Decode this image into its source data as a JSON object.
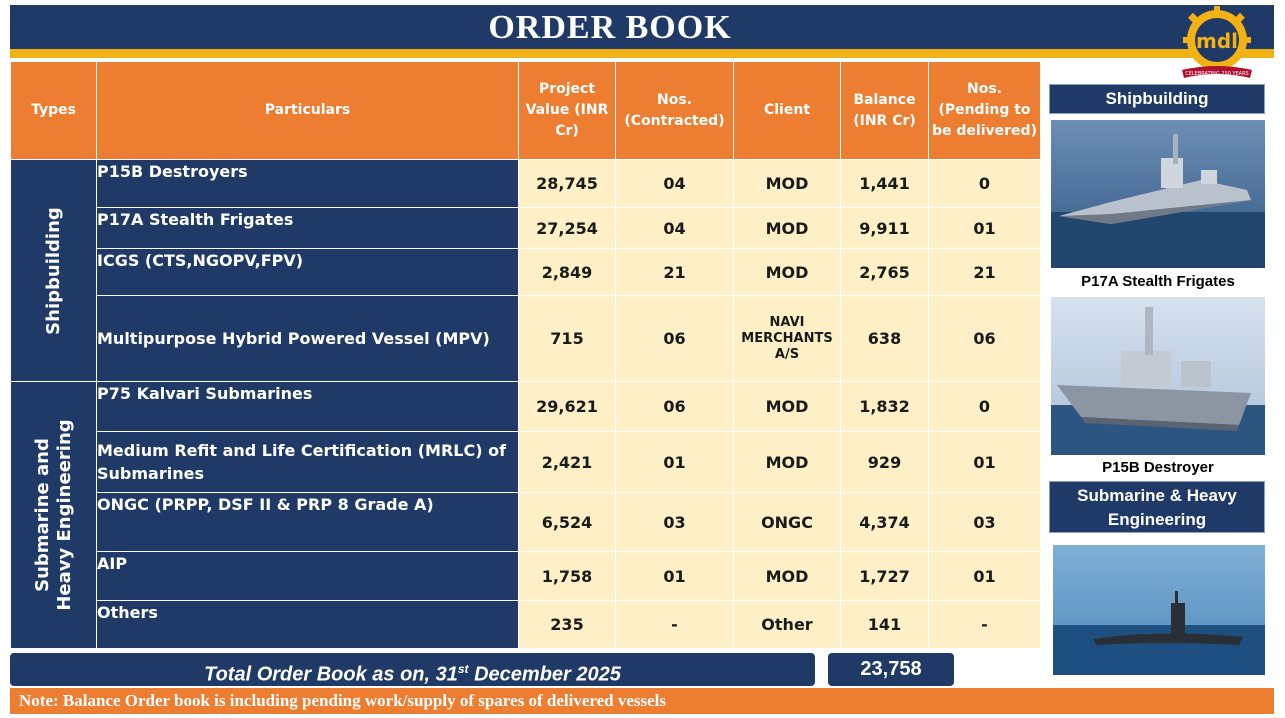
{
  "header": {
    "title": "ORDER BOOK"
  },
  "logo": {
    "letters": "mdl",
    "ribbon": "CELEBRATING 250 YEARS"
  },
  "table": {
    "headers": {
      "types": "Types",
      "particulars": "Particulars",
      "project_value": "Project Value (INR Cr)",
      "nos_contracted": "Nos. (Contracted)",
      "client": "Client",
      "balance": "Balance (INR Cr)",
      "nos_pending": "Nos. (Pending to be delivered)"
    },
    "groups": [
      {
        "type": "Shipbuilding",
        "rows": [
          {
            "particulars": "P15B Destroyers",
            "project_value": "28,745",
            "nos_contracted": "04",
            "client": "MOD",
            "balance": "1,441",
            "nos_pending": "0"
          },
          {
            "particulars": "P17A Stealth Frigates",
            "project_value": "27,254",
            "nos_contracted": "04",
            "client": "MOD",
            "balance": "9,911",
            "nos_pending": "01"
          },
          {
            "particulars": "ICGS (CTS,NGOPV,FPV)",
            "project_value": "2,849",
            "nos_contracted": "21",
            "client": "MOD",
            "balance": "2,765",
            "nos_pending": "21"
          },
          {
            "particulars": "Multipurpose Hybrid Powered Vessel (MPV)",
            "project_value": "715",
            "nos_contracted": "06",
            "client": "NAVI MERCHANTS A/S",
            "balance": "638",
            "nos_pending": "06"
          }
        ]
      },
      {
        "type_line1": "Submarine and",
        "type_line2": "Heavy Engineering",
        "rows": [
          {
            "particulars": "P75 Kalvari Submarines",
            "project_value": "29,621",
            "nos_contracted": "06",
            "client": "MOD",
            "balance": "1,832",
            "nos_pending": "0"
          },
          {
            "particulars": "Medium Refit and Life Certification (MRLC) of Submarines",
            "project_value": "2,421",
            "nos_contracted": "01",
            "client": "MOD",
            "balance": "929",
            "nos_pending": "01"
          },
          {
            "particulars": "ONGC (PRPP, DSF II & PRP 8 Grade A)",
            "project_value": "6,524",
            "nos_contracted": "03",
            "client": "ONGC",
            "balance": "4,374",
            "nos_pending": "03"
          },
          {
            "particulars": "AIP",
            "project_value": "1,758",
            "nos_contracted": "01",
            "client": "MOD",
            "balance": "1,727",
            "nos_pending": "01"
          },
          {
            "particulars": "Others",
            "project_value": "235",
            "nos_contracted": "-",
            "client": "Other",
            "balance": "141",
            "nos_pending": "-"
          }
        ]
      }
    ]
  },
  "total": {
    "label_prefix": "Total Order Book as on, 31",
    "label_sup": "st",
    "label_suffix": " December 2025",
    "value": "23,758"
  },
  "note": "Note: Balance Order book is including pending work/supply of spares of delivered vessels",
  "sidebar": {
    "shipbuilding_heading": "Shipbuilding",
    "caption_1": "P17A Stealth Frigates",
    "caption_2": "P15B Destroyer",
    "submarine_heading": "Submarine & Heavy Engineering"
  },
  "colors": {
    "navy": "#1f3a66",
    "orange": "#ed7d31",
    "cream": "#fdf0c7",
    "gold": "#f2b114"
  }
}
